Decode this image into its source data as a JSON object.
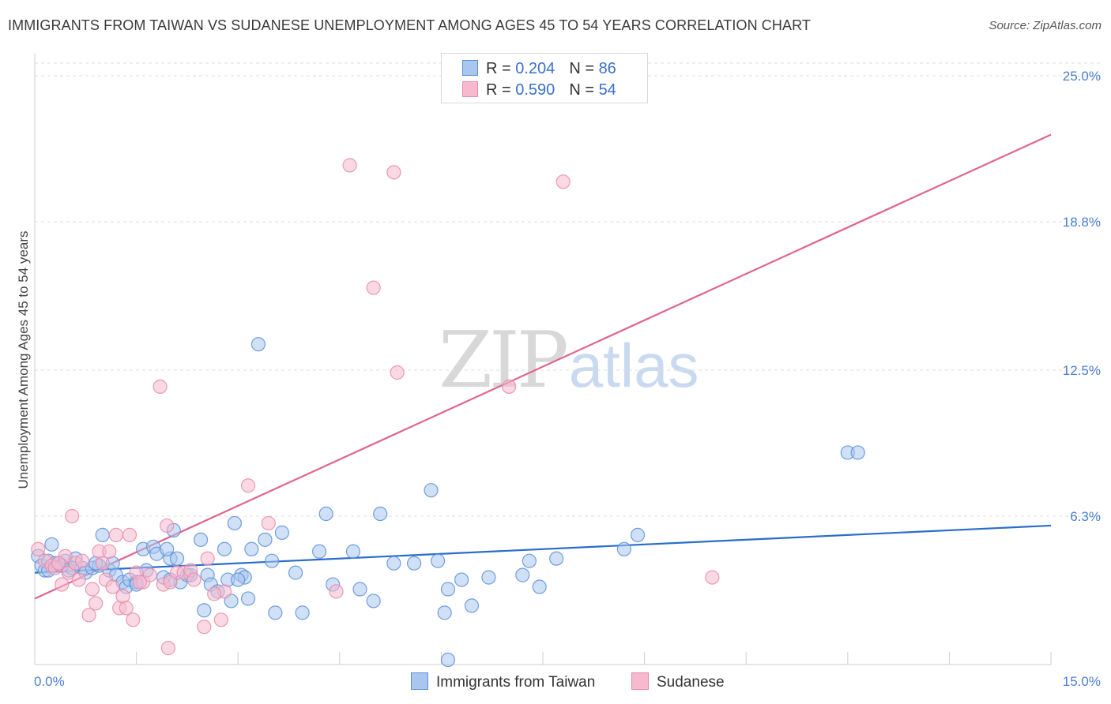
{
  "title": "IMMIGRANTS FROM TAIWAN VS SUDANESE UNEMPLOYMENT AMONG AGES 45 TO 54 YEARS CORRELATION CHART",
  "source": "Source: ZipAtlas.com",
  "watermark": {
    "zip": "ZIP",
    "atlas": "atlas"
  },
  "legend": {
    "taiwan": {
      "r_label": "R = ",
      "r_value": "0.204",
      "n_label": "N = ",
      "n_value": "86"
    },
    "sudanese": {
      "r_label": "R = ",
      "r_value": "0.590",
      "n_label": "N = ",
      "n_value": "54"
    }
  },
  "colors": {
    "taiwan_fill": "#a9c6ee",
    "taiwan_stroke": "#5b8fd8",
    "taiwan_line": "#2a6ccc",
    "sudanese_fill": "#f6b9cd",
    "sudanese_stroke": "#e889aa",
    "sudanese_line": "#e0648f",
    "grid": "#dddddd",
    "axis_label": "#4a7fd0"
  },
  "chart_data": {
    "type": "scatter",
    "title": "IMMIGRANTS FROM TAIWAN VS SUDANESE UNEMPLOYMENT AMONG AGES 45 TO 54 YEARS CORRELATION CHART",
    "xlabel": "",
    "ylabel": "Unemployment Among Ages 45 to 54 years",
    "xlim": [
      0,
      15
    ],
    "ylim": [
      0,
      25
    ],
    "x_tick_labels": [
      "0.0%",
      "15.0%"
    ],
    "y_ticks": [
      6.3,
      12.5,
      18.8,
      25.0
    ],
    "y_tick_labels": [
      "6.3%",
      "12.5%",
      "18.8%",
      "25.0%"
    ],
    "grid": "horizontal dashed",
    "legend_position": "top-center and bottom",
    "series": [
      {
        "name": "Immigrants from Taiwan",
        "r": 0.204,
        "n": 86,
        "trend": {
          "x": [
            0,
            15
          ],
          "y": [
            3.9,
            5.9
          ]
        },
        "points": [
          [
            0.05,
            4.6
          ],
          [
            0.1,
            4.2
          ],
          [
            0.15,
            4.0
          ],
          [
            0.2,
            4.4
          ],
          [
            0.25,
            5.1
          ],
          [
            0.3,
            4.3
          ],
          [
            0.35,
            4.3
          ],
          [
            0.45,
            4.4
          ],
          [
            0.5,
            4.0
          ],
          [
            0.6,
            4.5
          ],
          [
            0.7,
            4.1
          ],
          [
            0.75,
            3.9
          ],
          [
            0.85,
            4.1
          ],
          [
            0.95,
            4.2
          ],
          [
            1.0,
            5.5
          ],
          [
            1.1,
            4.0
          ],
          [
            1.15,
            4.3
          ],
          [
            1.2,
            3.8
          ],
          [
            1.3,
            3.5
          ],
          [
            1.35,
            3.3
          ],
          [
            1.4,
            3.6
          ],
          [
            1.5,
            3.5
          ],
          [
            1.6,
            4.9
          ],
          [
            1.65,
            4.0
          ],
          [
            1.75,
            5.0
          ],
          [
            1.8,
            4.7
          ],
          [
            1.9,
            3.7
          ],
          [
            2.0,
            4.5
          ],
          [
            2.05,
            5.7
          ],
          [
            2.1,
            4.5
          ],
          [
            2.15,
            3.5
          ],
          [
            2.25,
            3.8
          ],
          [
            2.3,
            3.8
          ],
          [
            2.45,
            5.3
          ],
          [
            2.5,
            2.3
          ],
          [
            2.55,
            3.8
          ],
          [
            2.6,
            3.4
          ],
          [
            2.7,
            3.1
          ],
          [
            2.8,
            4.9
          ],
          [
            2.85,
            3.6
          ],
          [
            2.9,
            2.7
          ],
          [
            2.95,
            6.0
          ],
          [
            3.05,
            3.8
          ],
          [
            3.1,
            3.7
          ],
          [
            3.15,
            2.8
          ],
          [
            3.2,
            4.9
          ],
          [
            3.4,
            5.3
          ],
          [
            3.5,
            4.4
          ],
          [
            3.55,
            2.2
          ],
          [
            3.65,
            5.6
          ],
          [
            3.85,
            3.9
          ],
          [
            3.95,
            2.2
          ],
          [
            4.2,
            4.8
          ],
          [
            4.3,
            6.4
          ],
          [
            4.4,
            3.4
          ],
          [
            4.7,
            4.8
          ],
          [
            4.8,
            3.2
          ],
          [
            5.0,
            2.7
          ],
          [
            5.1,
            6.4
          ],
          [
            5.3,
            4.3
          ],
          [
            5.6,
            4.3
          ],
          [
            5.85,
            7.4
          ],
          [
            5.95,
            4.4
          ],
          [
            6.1,
            3.2
          ],
          [
            6.1,
            0.2
          ],
          [
            6.3,
            3.6
          ],
          [
            6.45,
            2.5
          ],
          [
            6.7,
            3.7
          ],
          [
            7.2,
            3.8
          ],
          [
            7.3,
            4.4
          ],
          [
            7.45,
            3.3
          ],
          [
            7.7,
            4.5
          ],
          [
            8.7,
            4.9
          ],
          [
            8.9,
            5.5
          ],
          [
            12.0,
            9.0
          ],
          [
            12.15,
            9.0
          ],
          [
            1.5,
            3.4
          ],
          [
            2.0,
            3.6
          ],
          [
            0.9,
            4.3
          ],
          [
            1.95,
            4.9
          ],
          [
            3.0,
            3.6
          ],
          [
            0.55,
            4.1
          ],
          [
            6.05,
            2.2
          ],
          [
            3.3,
            13.6
          ],
          [
            0.2,
            4.0
          ],
          [
            0.4,
            4.2
          ]
        ]
      },
      {
        "name": "Sudanese",
        "r": 0.59,
        "n": 54,
        "trend": {
          "x": [
            0,
            15
          ],
          "y": [
            2.8,
            22.5
          ]
        },
        "points": [
          [
            0.05,
            4.9
          ],
          [
            0.15,
            4.4
          ],
          [
            0.25,
            4.2
          ],
          [
            0.3,
            4.1
          ],
          [
            0.4,
            3.4
          ],
          [
            0.45,
            4.6
          ],
          [
            0.5,
            3.9
          ],
          [
            0.55,
            6.3
          ],
          [
            0.6,
            4.3
          ],
          [
            0.7,
            4.4
          ],
          [
            0.8,
            2.1
          ],
          [
            0.85,
            3.2
          ],
          [
            0.9,
            2.6
          ],
          [
            0.95,
            4.8
          ],
          [
            1.0,
            4.3
          ],
          [
            1.05,
            3.6
          ],
          [
            1.1,
            4.8
          ],
          [
            1.2,
            5.5
          ],
          [
            1.25,
            2.4
          ],
          [
            1.3,
            2.9
          ],
          [
            1.35,
            2.4
          ],
          [
            1.4,
            5.5
          ],
          [
            1.45,
            1.9
          ],
          [
            1.5,
            3.9
          ],
          [
            1.6,
            3.5
          ],
          [
            1.7,
            3.8
          ],
          [
            1.85,
            11.8
          ],
          [
            1.9,
            3.4
          ],
          [
            1.95,
            5.9
          ],
          [
            1.97,
            0.7
          ],
          [
            2.0,
            3.5
          ],
          [
            2.1,
            3.9
          ],
          [
            2.2,
            3.9
          ],
          [
            2.3,
            4.0
          ],
          [
            2.35,
            3.6
          ],
          [
            2.5,
            1.6
          ],
          [
            2.55,
            4.5
          ],
          [
            2.75,
            1.9
          ],
          [
            2.8,
            3.1
          ],
          [
            3.15,
            7.6
          ],
          [
            3.45,
            6.0
          ],
          [
            4.45,
            3.1
          ],
          [
            4.65,
            21.2
          ],
          [
            5.0,
            16.0
          ],
          [
            5.35,
            12.4
          ],
          [
            5.3,
            20.9
          ],
          [
            7.0,
            11.8
          ],
          [
            7.8,
            20.5
          ],
          [
            10.0,
            3.7
          ],
          [
            0.35,
            4.3
          ],
          [
            1.15,
            3.3
          ],
          [
            0.65,
            3.6
          ],
          [
            1.55,
            3.5
          ],
          [
            2.65,
            3.0
          ]
        ]
      }
    ]
  },
  "x_axis": {
    "min_label": "0.0%",
    "max_label": "15.0%"
  },
  "bottom_legend": {
    "taiwan": "Immigrants from Taiwan",
    "sudanese": "Sudanese"
  }
}
